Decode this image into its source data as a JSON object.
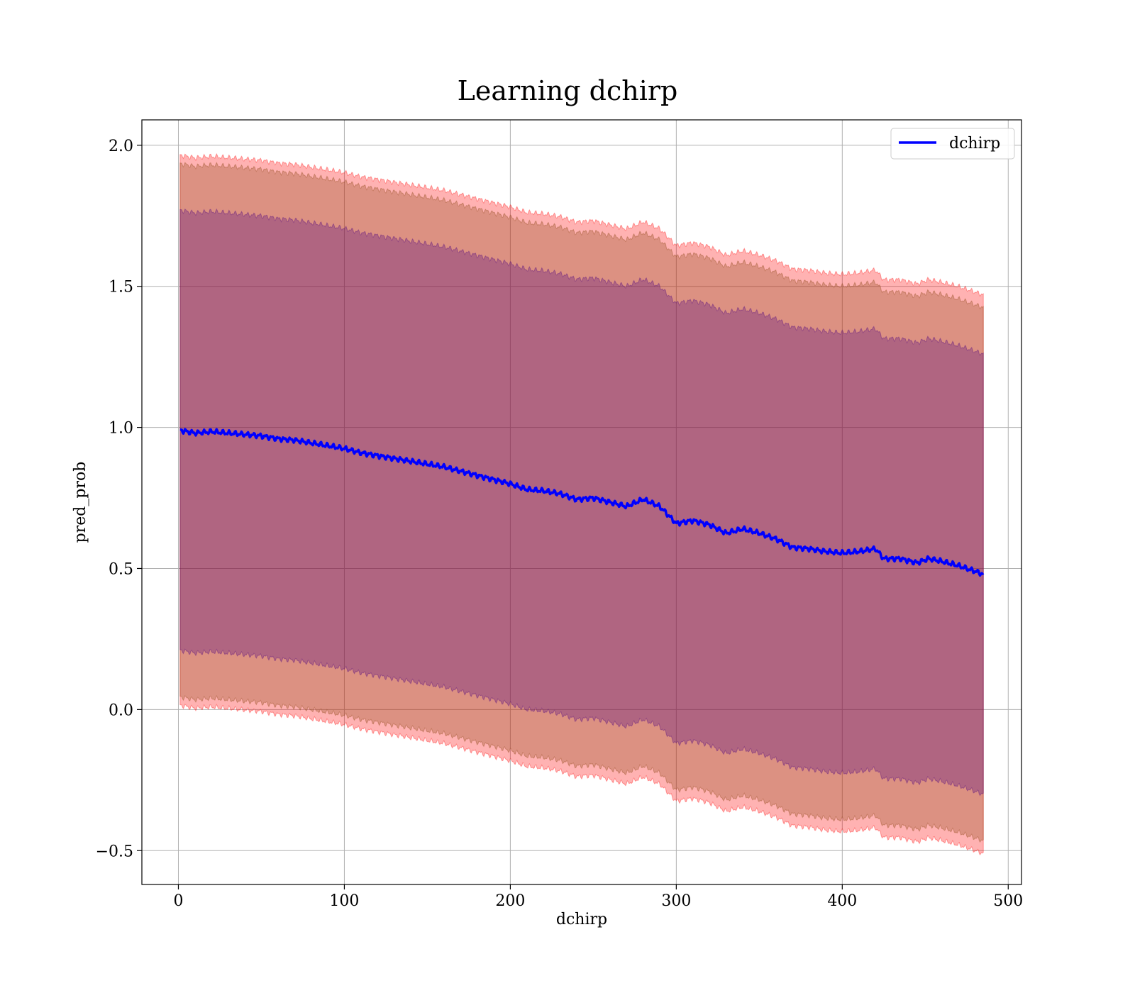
{
  "chart_data": {
    "type": "line",
    "title": "Learning dchirp",
    "xlabel": "dchirp",
    "ylabel": "pred_prob",
    "xlim": [
      -22,
      508
    ],
    "ylim": [
      -0.62,
      2.09
    ],
    "xticks": [
      0,
      100,
      200,
      300,
      400,
      500
    ],
    "yticks": [
      -0.5,
      0.0,
      0.5,
      1.0,
      1.5,
      2.0
    ],
    "xtick_labels": [
      "0",
      "100",
      "200",
      "300",
      "400",
      "500"
    ],
    "ytick_labels": [
      "−0.5",
      "0.0",
      "0.5",
      "1.0",
      "1.5",
      "2.0"
    ],
    "grid": true,
    "legend_position": "top-right",
    "colors": {
      "line": "#0000ff",
      "band_outer": "#ff0000",
      "band_middle": "#8b4513",
      "band_inner": "#4b0082"
    },
    "series": [
      {
        "name": "dchirp",
        "x": [
          1,
          10,
          20,
          30,
          40,
          50,
          60,
          70,
          80,
          90,
          100,
          110,
          120,
          130,
          140,
          150,
          160,
          170,
          180,
          190,
          200,
          210,
          220,
          230,
          240,
          250,
          260,
          270,
          280,
          290,
          300,
          310,
          320,
          330,
          340,
          350,
          360,
          370,
          380,
          390,
          400,
          410,
          420,
          425,
          435,
          445,
          452,
          460,
          470,
          485
        ],
        "y": [
          0.99,
          0.98,
          0.985,
          0.98,
          0.975,
          0.97,
          0.96,
          0.955,
          0.945,
          0.935,
          0.925,
          0.91,
          0.9,
          0.89,
          0.88,
          0.87,
          0.86,
          0.845,
          0.83,
          0.815,
          0.8,
          0.78,
          0.775,
          0.765,
          0.745,
          0.75,
          0.735,
          0.72,
          0.745,
          0.72,
          0.66,
          0.67,
          0.655,
          0.625,
          0.64,
          0.625,
          0.605,
          0.575,
          0.57,
          0.56,
          0.555,
          0.56,
          0.57,
          0.535,
          0.535,
          0.52,
          0.535,
          0.525,
          0.51,
          0.48
        ]
      }
    ],
    "bands": [
      {
        "k": 1.65,
        "inner": 0.025,
        "end": 0.978
      },
      {
        "k": 1.35,
        "inner": 0.035,
        "end": 0.945
      },
      {
        "k": 1.0,
        "inner": 0.25,
        "end": 0.78
      }
    ]
  },
  "legend": {
    "label": "dchirp"
  }
}
